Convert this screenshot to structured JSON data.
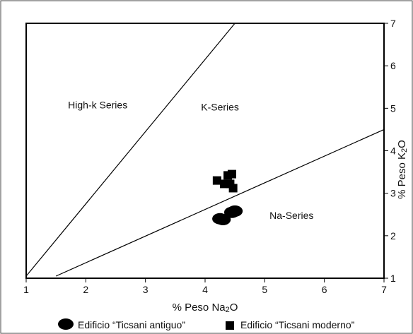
{
  "chart_data": {
    "type": "scatter",
    "xlabel": "% Peso Na2O",
    "ylabel": "% Peso K2O",
    "xlim": [
      1,
      7
    ],
    "ylim": [
      1,
      7
    ],
    "x_ticks": [
      1,
      2,
      3,
      4,
      5,
      6,
      7
    ],
    "y_ticks": [
      1,
      2,
      3,
      4,
      5,
      6,
      7
    ],
    "grid": false,
    "legend_position": "bottom",
    "boundary_lines": [
      {
        "from": [
          1,
          1.05
        ],
        "to": [
          4.5,
          7
        ]
      },
      {
        "from": [
          1.5,
          1.05
        ],
        "to": [
          7,
          4.5
        ]
      }
    ],
    "field_labels": [
      {
        "text": "High-k Series",
        "x": 2.2,
        "y": 5.0
      },
      {
        "text": "K-Series",
        "x": 4.25,
        "y": 4.95
      },
      {
        "text": "Na-Series",
        "x": 5.45,
        "y": 2.4
      }
    ],
    "series": [
      {
        "name": "Edificio “Ticsani antiguo”",
        "marker": "circle",
        "points": [
          [
            4.25,
            2.4
          ],
          [
            4.3,
            2.38
          ],
          [
            4.45,
            2.55
          ],
          [
            4.5,
            2.58
          ]
        ]
      },
      {
        "name": "Edificio “Ticsani moderno”",
        "marker": "square",
        "points": [
          [
            4.2,
            3.3
          ],
          [
            4.32,
            3.22
          ],
          [
            4.38,
            3.42
          ],
          [
            4.45,
            3.45
          ],
          [
            4.42,
            3.22
          ],
          [
            4.47,
            3.12
          ]
        ]
      }
    ]
  }
}
